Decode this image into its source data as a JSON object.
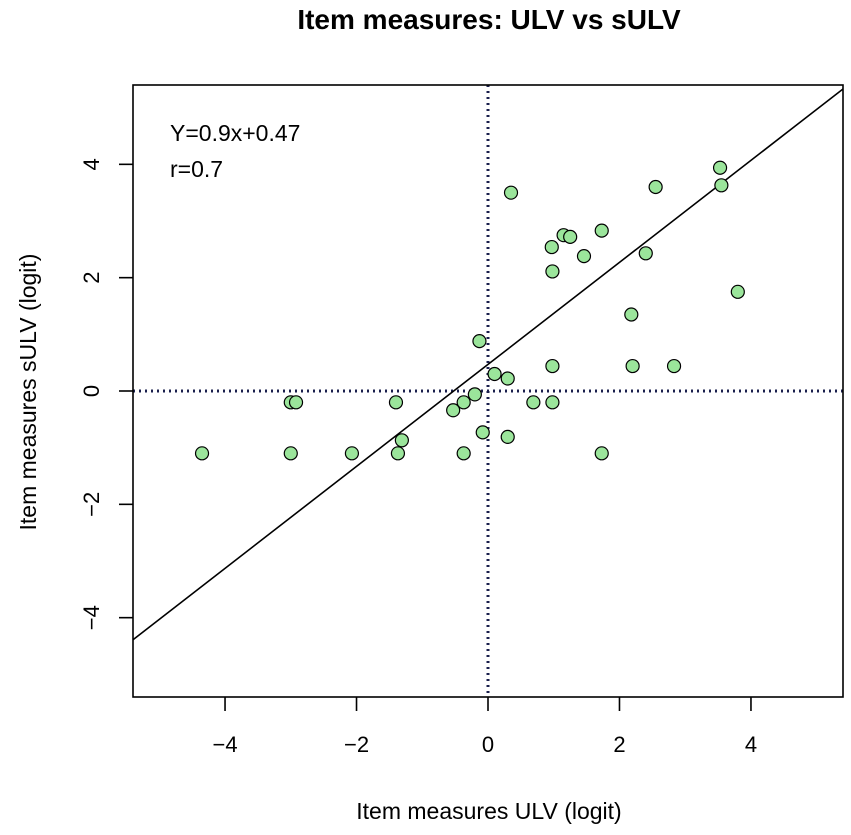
{
  "chart_data": {
    "type": "scatter",
    "title": "Item measures: ULV vs sULV",
    "xlabel": "Item measures ULV (logit)",
    "ylabel": "Item measures sULV (logit)",
    "xlim": [
      -5.4,
      5.4
    ],
    "ylim": [
      -5.4,
      5.4
    ],
    "xticks": [
      -4,
      -2,
      0,
      2,
      4
    ],
    "yticks": [
      -4,
      -2,
      0,
      2,
      4
    ],
    "x_tick_labels": [
      "−4",
      "−2",
      "0",
      "2",
      "4"
    ],
    "y_tick_labels": [
      "−4",
      "−2",
      "0",
      "2",
      "4"
    ],
    "grid": false,
    "point_color": "#9be59b",
    "point_edge_color": "#000000",
    "reference_line_color": "#1a1f4d",
    "annotations": [
      "Y=0.9x+0.47",
      "r=0.7"
    ],
    "fit_line": {
      "slope": 0.9,
      "intercept": 0.47
    },
    "reference_lines": {
      "x": 0,
      "y": 0
    },
    "points": [
      {
        "x": -4.35,
        "y": -1.1
      },
      {
        "x": -3.0,
        "y": -0.2
      },
      {
        "x": -2.92,
        "y": -0.2
      },
      {
        "x": -3.0,
        "y": -1.1
      },
      {
        "x": -2.07,
        "y": -1.1
      },
      {
        "x": -1.4,
        "y": -0.2
      },
      {
        "x": -1.31,
        "y": -0.87
      },
      {
        "x": -1.37,
        "y": -1.1
      },
      {
        "x": -0.53,
        "y": -0.34
      },
      {
        "x": -0.37,
        "y": -0.2
      },
      {
        "x": -0.37,
        "y": -1.1
      },
      {
        "x": -0.2,
        "y": -0.06
      },
      {
        "x": -0.13,
        "y": 0.88
      },
      {
        "x": -0.08,
        "y": -0.73
      },
      {
        "x": 0.1,
        "y": 0.3
      },
      {
        "x": 0.3,
        "y": 0.22
      },
      {
        "x": 0.3,
        "y": -0.81
      },
      {
        "x": 0.35,
        "y": 3.5
      },
      {
        "x": 0.69,
        "y": -0.2
      },
      {
        "x": 0.97,
        "y": 2.54
      },
      {
        "x": 0.98,
        "y": 2.11
      },
      {
        "x": 0.98,
        "y": 0.44
      },
      {
        "x": 0.98,
        "y": -0.2
      },
      {
        "x": 1.15,
        "y": 2.75
      },
      {
        "x": 1.25,
        "y": 2.72
      },
      {
        "x": 1.46,
        "y": 2.38
      },
      {
        "x": 1.73,
        "y": 2.83
      },
      {
        "x": 1.73,
        "y": -1.1
      },
      {
        "x": 2.18,
        "y": 1.35
      },
      {
        "x": 2.2,
        "y": 0.44
      },
      {
        "x": 2.4,
        "y": 2.43
      },
      {
        "x": 2.55,
        "y": 3.6
      },
      {
        "x": 2.83,
        "y": 0.44
      },
      {
        "x": 3.53,
        "y": 3.94
      },
      {
        "x": 3.55,
        "y": 3.63
      },
      {
        "x": 3.8,
        "y": 1.75
      }
    ]
  }
}
